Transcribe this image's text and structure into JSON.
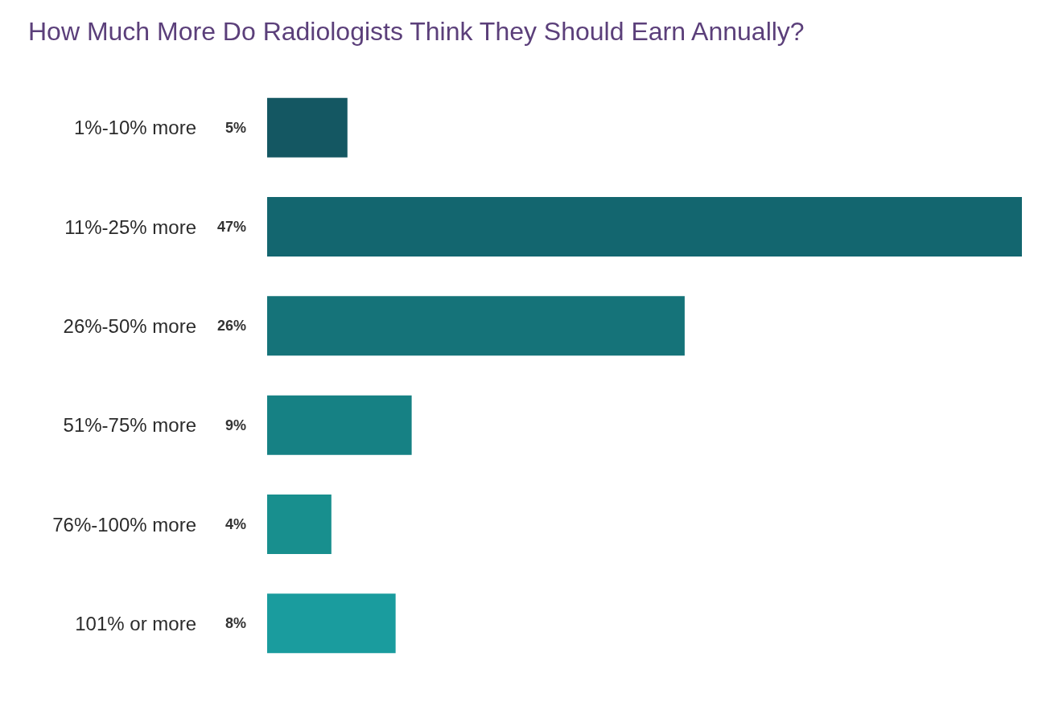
{
  "chart_data": {
    "type": "bar",
    "orientation": "horizontal",
    "title": "How Much More Do Radiologists Think They Should Earn Annually?",
    "categories": [
      "1%-10% more",
      "11%-25% more",
      "26%-50% more",
      "51%-75% more",
      "76%-100% more",
      "101% or more"
    ],
    "values": [
      5,
      47,
      26,
      9,
      4,
      8
    ],
    "value_labels": [
      "5%",
      "47%",
      "26%",
      "9%",
      "4%",
      "8%"
    ],
    "colors": [
      "#145762",
      "#13666f",
      "#157379",
      "#168184",
      "#188f8e",
      "#1a9c9e"
    ],
    "grid": false
  }
}
